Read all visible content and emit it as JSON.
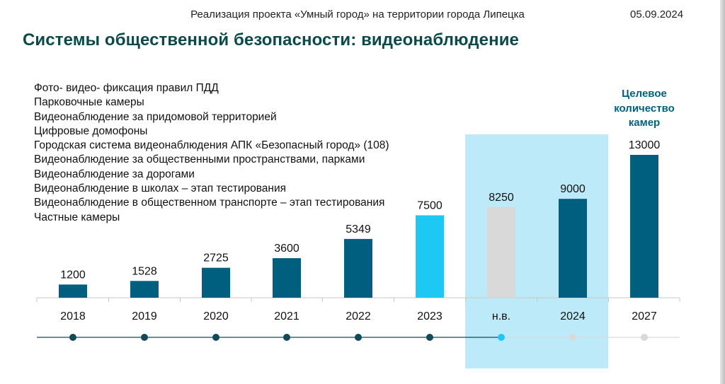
{
  "header": {
    "title": "Реализация проекта «Умный город» на территории города Липецка",
    "date": "05.09.2024"
  },
  "page_title": "Системы общественной безопасности: видеонаблюдение",
  "camera_types": [
    "Фото- видео- фиксация правил ПДД",
    "Парковочные камеры",
    "Видеонаблюдение за придомовой территорией",
    "Цифровые домофоны",
    "Городская система видеонаблюдения АПК «Безопасный город» (108)",
    "Видеонаблюдение за общественными пространствами, парками",
    "Видеонаблюдение за дорогами",
    "Видеонаблюдение в школах – этап тестирования",
    "Видеонаблюдение в общественном транспорте – этап тестирования",
    "Частные камеры"
  ],
  "target_label": [
    "Целевое",
    "количество",
    "камер"
  ],
  "colors": {
    "title": "#0c4a4a",
    "bar_dark": "#005f7f",
    "bar_current": "#1ec8f5",
    "bar_nv": "#d9d9d9",
    "highlight": "#bdeaf8",
    "timeline_done": "#134a5a",
    "timeline_current": "#1ec8f5",
    "timeline_future": "#d9d9d9"
  },
  "chart_data": {
    "type": "bar",
    "categories": [
      "2018",
      "2019",
      "2020",
      "2021",
      "2022",
      "2023",
      "н.в.",
      "2024",
      "2027"
    ],
    "values": [
      1200,
      1528,
      2725,
      3600,
      5349,
      7500,
      8250,
      9000,
      13000
    ],
    "value_labels": [
      "1200",
      "1528",
      "2725",
      "3600",
      "5349",
      "7500",
      "8250",
      "9000",
      "13000"
    ],
    "bar_styles": [
      "dark",
      "dark",
      "dark",
      "dark",
      "dark",
      "current",
      "nv",
      "dark",
      "dark"
    ],
    "timeline_states": [
      "done",
      "done",
      "done",
      "done",
      "done",
      "done",
      "current",
      "future",
      "future"
    ],
    "highlight_categories": [
      "н.в.",
      "2024"
    ],
    "ylim": [
      0,
      13000
    ],
    "grid": false,
    "title": "",
    "xlabel": "",
    "ylabel": ""
  }
}
